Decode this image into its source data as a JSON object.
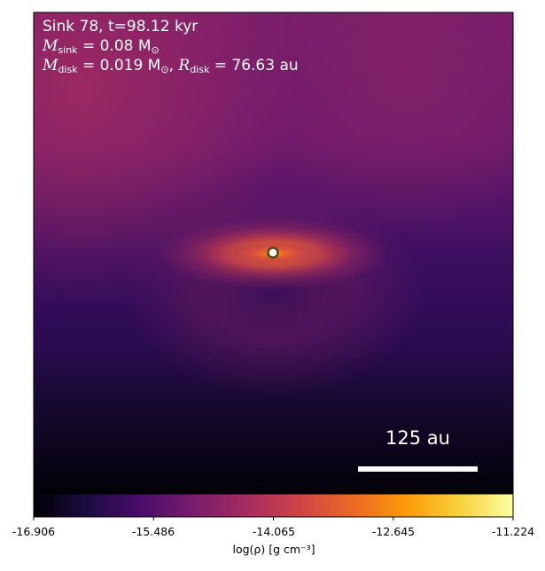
{
  "info": {
    "line1": "Sink 78, t=98.12 kyr",
    "m_sink_symbol": "M",
    "m_sink_sub": "sink",
    "m_sink_value": " = 0.08 M",
    "m_sink_unit_sub": "⊙",
    "m_disk_symbol": "M",
    "m_disk_sub": "disk",
    "m_disk_value": " = 0.019 M",
    "m_disk_unit_sub": "⊙",
    "r_disk_sep": ", ",
    "r_disk_symbol": "R",
    "r_disk_sub": "disk",
    "r_disk_value": " = 76.63 au"
  },
  "scale_bar": {
    "label": "125 au"
  },
  "colorbar": {
    "ticks": [
      "-16.906",
      "-15.486",
      "-14.065",
      "-12.645",
      "-11.224"
    ],
    "label": "log(ρ) [g cm⁻³]",
    "colormap": [
      "#000004",
      "#1b0c41",
      "#4a0c6b",
      "#781c6d",
      "#a52c60",
      "#cf4446",
      "#ed6925",
      "#fb9b06",
      "#f7d13d",
      "#fcffa4"
    ]
  },
  "colors": {
    "sink_marker_fill": "#ffffff",
    "sink_marker_edge": "#4a4a14"
  }
}
